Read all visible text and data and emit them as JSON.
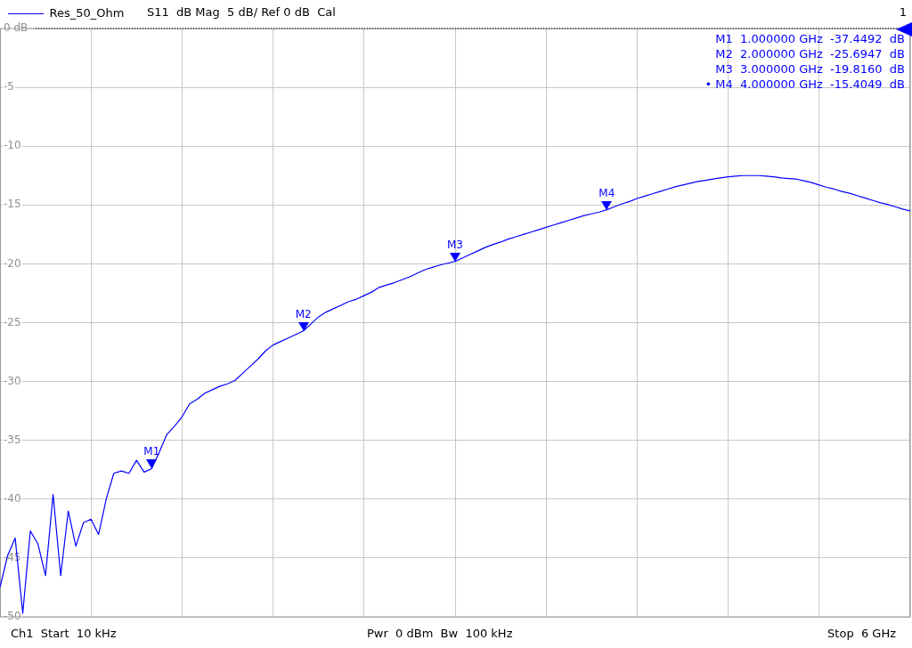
{
  "chart_data": {
    "type": "line",
    "subtitle": "S11  dB Mag  5 dB/ Ref 0 dB  Cal",
    "categories": [
      null,
      null,
      null,
      null,
      null,
      null,
      null,
      null,
      null,
      null,
      null,
      null,
      null,
      null,
      null,
      null,
      null,
      null,
      null,
      null,
      null,
      null,
      null,
      null,
      null,
      null,
      null,
      null,
      null,
      null,
      null,
      null,
      null,
      null,
      null,
      null,
      null,
      null,
      null,
      null,
      null,
      null,
      null,
      null,
      null,
      null,
      null,
      null,
      null,
      null,
      null,
      null,
      null,
      null,
      null,
      null,
      null,
      null,
      null,
      null,
      null,
      null,
      null,
      null,
      null,
      null,
      null,
      null,
      null,
      null,
      null,
      null,
      null,
      null,
      null,
      null,
      null,
      null,
      null,
      null,
      null,
      null,
      null,
      null,
      null,
      null,
      null,
      null,
      null,
      null,
      null,
      null,
      null,
      null,
      null,
      null,
      null,
      null,
      null,
      null,
      null,
      null,
      null,
      null,
      null,
      null,
      null,
      null,
      null,
      null,
      null,
      null,
      null,
      null,
      null,
      null,
      null,
      null,
      null,
      null,
      null
    ],
    "ylim": [
      -50,
      0
    ],
    "yticks": [
      {
        "value": 0,
        "label": "0 dB"
      },
      -5,
      -10,
      -15,
      -20,
      -25,
      -30,
      -35,
      -40,
      -45,
      -50
    ],
    "grid": true,
    "legend": "top left",
    "tick_labels": "y",
    "line_style": "solid",
    "marker": "none",
    "series": [
      {
        "name": "Res_50_Ohm",
        "color": "#0000ff",
        "values": [
          -47.5,
          -44.8,
          -43.3,
          -49.7,
          -42.7,
          -43.8,
          -46.5,
          -39.6,
          -46.5,
          -41.0,
          -44.0,
          -42.0,
          -41.7,
          -43.0,
          -40.0,
          -37.8,
          -37.6,
          -37.8,
          -36.7,
          -37.7,
          -37.4,
          -36.0,
          -34.5,
          -33.8,
          -33.0,
          -31.9,
          -31.5,
          -31.0,
          -30.7,
          -30.4,
          -30.2,
          -29.9,
          -29.3,
          -28.7,
          -28.1,
          -27.4,
          -26.9,
          -26.6,
          -26.3,
          -26.0,
          -25.7,
          -25.1,
          -24.5,
          -24.1,
          -23.8,
          -23.5,
          -23.2,
          -23.0,
          -22.7,
          -22.4,
          -22.0,
          -21.8,
          -21.6,
          -21.35,
          -21.1,
          -20.8,
          -20.5,
          -20.3,
          -20.1,
          -19.95,
          -19.8,
          -19.5,
          -19.2,
          -18.9,
          -18.6,
          -18.35,
          -18.15,
          -17.9,
          -17.7,
          -17.5,
          -17.3,
          -17.1,
          -16.9,
          -16.7,
          -16.5,
          -16.3,
          -16.1,
          -15.9,
          -15.75,
          -15.6,
          -15.4,
          -15.15,
          -14.9,
          -14.7,
          -14.45,
          -14.25,
          -14.05,
          -13.85,
          -13.65,
          -13.45,
          -13.3,
          -13.15,
          -13.0,
          -12.9,
          -12.8,
          -12.7,
          -12.6,
          -12.55,
          -12.5,
          -12.5,
          -12.5,
          -12.55,
          -12.6,
          -12.7,
          -12.75,
          -12.8,
          -12.95,
          -13.1,
          -13.3,
          -13.5,
          -13.65,
          -13.85,
          -14.0,
          -14.2,
          -14.4,
          -14.6,
          -14.8,
          -14.95,
          -15.15,
          -15.35,
          -15.5
        ]
      }
    ],
    "ref_lines": [
      {
        "axis": "y",
        "value": 0,
        "color": "#000000",
        "line_style": "dotted"
      }
    ],
    "annotations": [
      "1",
      "M1  1.000000 GHz  -37.4492  dB",
      "M2  2.000000 GHz  -25.6947  dB",
      "M3  3.000000 GHz  -19.8160  dB",
      "• M4  4.000000 GHz  -15.4049  dB",
      "Ch1  Start  10 kHz",
      "Pwr  0 dBm  Bw  100 kHz",
      "Stop  6 GHz",
      {
        "text": "M1",
        "y": -37.4
      },
      {
        "text": "M2",
        "y": -25.7
      },
      {
        "text": "M3",
        "y": -19.8
      },
      {
        "text": "M4",
        "y": -15.4
      }
    ]
  }
}
